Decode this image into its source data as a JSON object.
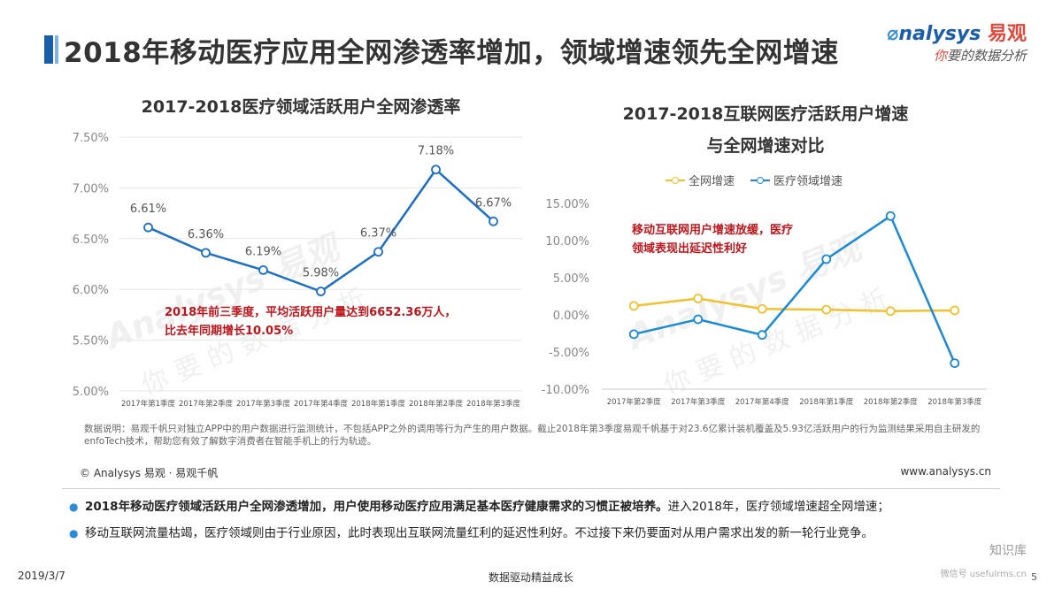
{
  "header": {
    "title": "2018年移动医疗应用全网渗透率增加，领域增速领先全网增速",
    "logo_brand_o": "nalysys",
    "logo_cn": "易观",
    "logo_sub_you": "你",
    "logo_sub_rest": "要的数据分析"
  },
  "left_chart": {
    "title": "2017-2018医疗领域活跃用户全网渗透率",
    "annotation_line1": "2018年前三季度，平均活跃用户量达到6652.36万人，",
    "annotation_line2": "比去年同期增长10.05%"
  },
  "right_chart": {
    "title_line1": "2017-2018互联网医疗活跃用户增速",
    "title_line2": "与全网增速对比",
    "annotation_line1": "移动互联网用户增速放缓，医疗",
    "annotation_line2": "领域表现出延迟性利好"
  },
  "chart_data": [
    {
      "type": "line",
      "title": "2017-2018医疗领域活跃用户全网渗透率",
      "categories": [
        "2017年第1季度",
        "2017年第2季度",
        "2017年第3季度",
        "2017年第4季度",
        "2018年第1季度",
        "2018年第2季度",
        "2018年第3季度"
      ],
      "series": [
        {
          "values": [
            6.61,
            6.36,
            6.19,
            5.98,
            6.37,
            7.18,
            6.67
          ],
          "labels": [
            "6.61%",
            "6.36%",
            "6.19%",
            "5.98%",
            "6.37%",
            "7.18%",
            "6.67%"
          ],
          "color": "#1a6fc4"
        }
      ],
      "ylim": [
        5.0,
        7.5
      ],
      "yticks": [
        "5.00%",
        "5.50%",
        "6.00%",
        "6.50%",
        "7.00%",
        "7.50%"
      ],
      "grid": true
    },
    {
      "type": "line",
      "title": "2017-2018互联网医疗活跃用户增速与全网增速对比",
      "categories": [
        "2017年第2季度",
        "2017年第3季度",
        "2017年第4季度",
        "2018年第1季度",
        "2018年第2季度",
        "2018年第3季度"
      ],
      "series": [
        {
          "name": "全网增速",
          "values": [
            1.2,
            2.2,
            0.8,
            0.7,
            0.5,
            0.6
          ],
          "color": "#f2c12e"
        },
        {
          "name": "医疗领域增速",
          "values": [
            -2.6,
            -0.6,
            -2.7,
            7.5,
            13.3,
            -6.5
          ],
          "color": "#1a8ad4"
        }
      ],
      "ylim": [
        -10,
        15
      ],
      "yticks": [
        "-10.00%",
        "-5.00%",
        "0.00%",
        "5.00%",
        "10.00%",
        "15.00%"
      ],
      "legend": "top",
      "grid": false
    }
  ],
  "source_note": "数据说明：易观千帆只对独立APP中的用户数据进行监测统计，不包括APP之外的调用等行为产生的用户数据。截止2018年第3季度易观千帆基于对23.6亿累计装机覆盖及5.93亿活跃用户的行为监测结果采用自主研发的enfoTech技术，帮助您有效了解数字消费者在智能手机上的行为轨迹。",
  "footer": {
    "copyright": "© Analysys 易观 · 易观千帆",
    "website": "www.analysys.cn"
  },
  "bullets": [
    {
      "bold": "2018年移动医疗领域活跃用户全网渗透增加，用户使用移动医疗应用满足基本医疗健康需求的习惯正被培养。",
      "rest": "进入2018年，医疗领域增速超全网增速；"
    },
    {
      "bold": "",
      "rest": "移动互联网流量枯竭，医疗领域则由于行业原因，此时表现出互联网流量红利的延迟性利好。不过接下来仍要面对从用户需求出发的新一轮行业竞争。"
    }
  ],
  "bottom": {
    "date": "2019/3/7",
    "slogan": "数据驱动精益成长",
    "page_number": "5",
    "wm_brand": "Analysys 易观",
    "wm_tag": "你要的数据分析",
    "zhishi": "知识库",
    "zhishi_url": "微信号 usefulrms.cn"
  }
}
